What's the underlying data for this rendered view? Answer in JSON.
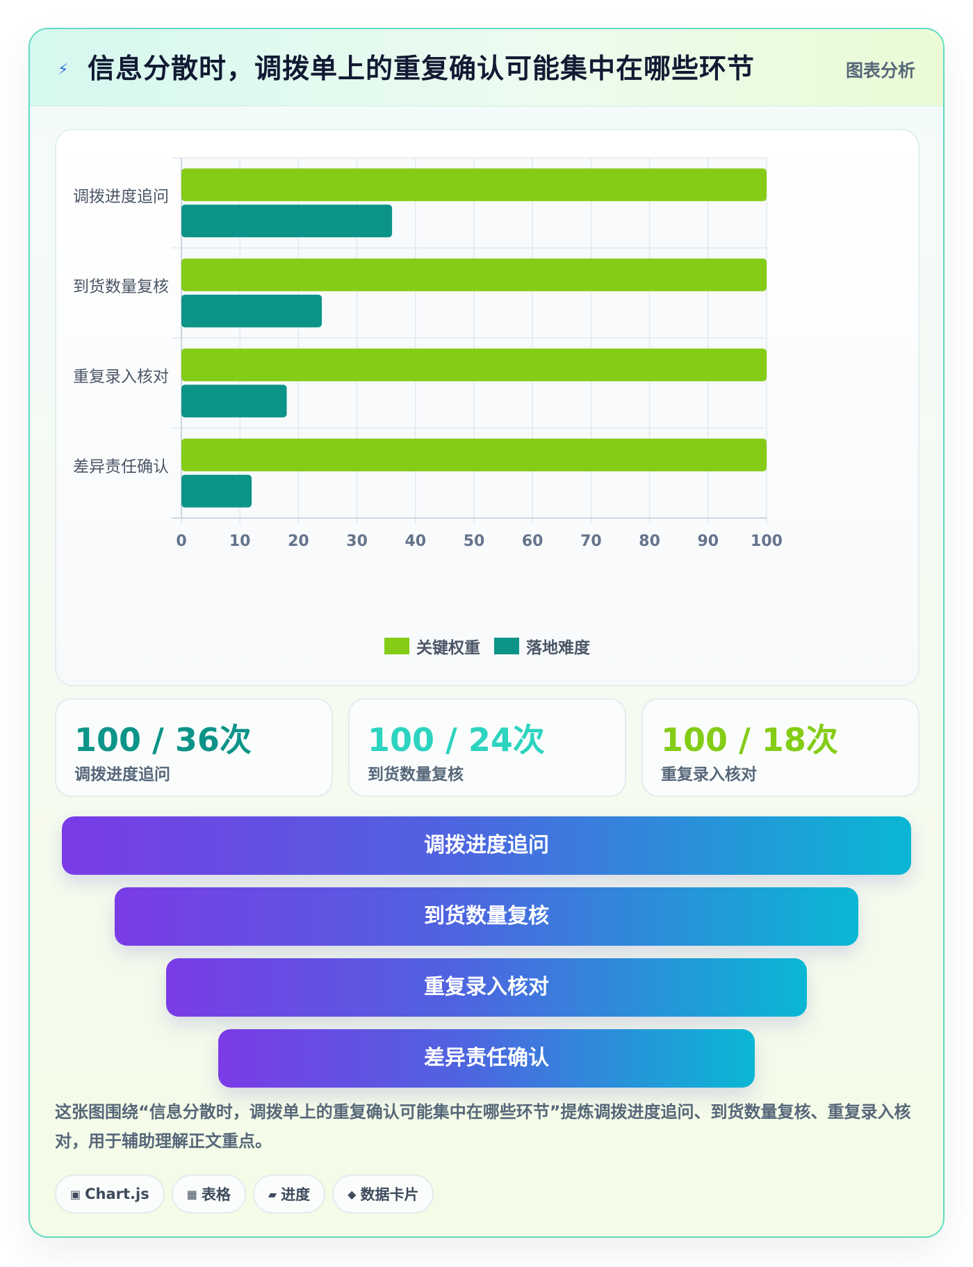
{
  "header": {
    "title": "信息分散时，调拨单上的重复确认可能集中在哪些环节",
    "tag": "图表分析",
    "icon": "lightning-icon"
  },
  "chart_data": {
    "type": "bar",
    "orientation": "horizontal",
    "categories": [
      "调拨进度追问",
      "到货数量复核",
      "重复录入核对",
      "差异责任确认"
    ],
    "series": [
      {
        "name": "关键权重",
        "values": [
          100,
          100,
          100,
          100
        ],
        "color": "#84cc16"
      },
      {
        "name": "落地难度",
        "values": [
          36,
          24,
          18,
          12
        ],
        "color": "#0d9488"
      }
    ],
    "xlim": [
      0,
      100
    ],
    "xticks": [
      "0",
      "10",
      "20",
      "30",
      "40",
      "50",
      "60",
      "70",
      "80",
      "90",
      "100"
    ],
    "grid": true,
    "legend": "bottom"
  },
  "stats": [
    {
      "value": "100 / 36次",
      "label": "调拨进度追问",
      "color": "#0d9488"
    },
    {
      "value": "100 / 24次",
      "label": "到货数量复核",
      "color": "#2dd4bf"
    },
    {
      "value": "100 / 18次",
      "label": "重复录入核对",
      "color": "#84cc16"
    }
  ],
  "funnel": [
    "调拨进度追问",
    "到货数量复核",
    "重复录入核对",
    "差异责任确认"
  ],
  "description": "这张图围绕“信息分散时，调拨单上的重复确认可能集中在哪些环节”提炼调拨进度追问、到货数量复核、重复录入核对，用于辅助理解正文重点。",
  "chips": [
    {
      "label": "Chart.js",
      "icon": "▣",
      "icon_name": "chart-icon"
    },
    {
      "label": "表格",
      "icon": "▦",
      "icon_name": "table-icon"
    },
    {
      "label": "进度",
      "icon": "▰",
      "icon_name": "progress-icon"
    },
    {
      "label": "数据卡片",
      "icon": "◆",
      "icon_name": "card-icon"
    }
  ]
}
